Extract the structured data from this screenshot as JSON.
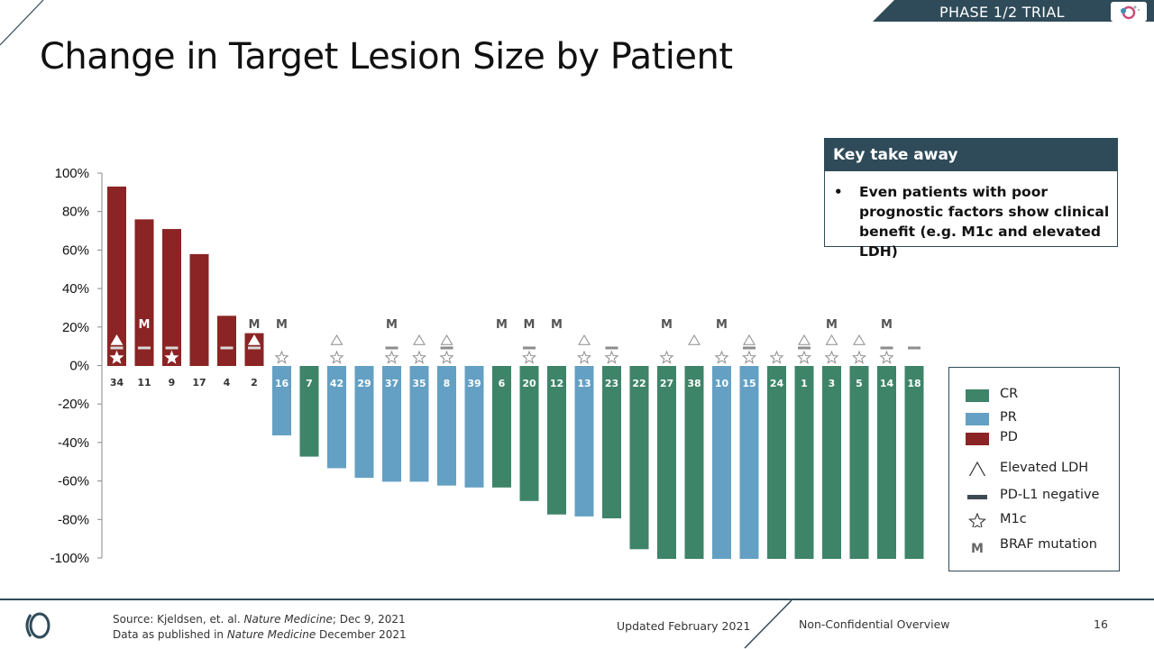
{
  "header": {
    "banner": "PHASE 1/2 TRIAL",
    "title": "Change in Target Lesion Size by Patient"
  },
  "colors": {
    "CR": "#3e8469",
    "PR": "#64a0c3",
    "PD": "#8b2424",
    "navy": "#2f4b59",
    "marker": "#8c8c8c"
  },
  "chart_data": {
    "type": "bar",
    "title": "Change in Target Lesion Size by Patient",
    "ylabel": "",
    "xlabel": "",
    "ylim": [
      -100,
      100
    ],
    "yticks": [
      "100%",
      "80%",
      "60%",
      "40%",
      "20%",
      "0%",
      "-20%",
      "-40%",
      "-60%",
      "-80%",
      "-100%"
    ],
    "patients": [
      {
        "id": "34",
        "value": 93,
        "response": "PD",
        "ldh": true,
        "pdl1_neg": true,
        "m1c": true,
        "braf": false
      },
      {
        "id": "11",
        "value": 76,
        "response": "PD",
        "ldh": false,
        "pdl1_neg": true,
        "m1c": false,
        "braf": true
      },
      {
        "id": "9",
        "value": 71,
        "response": "PD",
        "ldh": false,
        "pdl1_neg": true,
        "m1c": true,
        "braf": false
      },
      {
        "id": "17",
        "value": 58,
        "response": "PD",
        "ldh": false,
        "pdl1_neg": false,
        "m1c": false,
        "braf": false
      },
      {
        "id": "4",
        "value": 26,
        "response": "PD",
        "ldh": false,
        "pdl1_neg": true,
        "m1c": false,
        "braf": false
      },
      {
        "id": "2",
        "value": 17,
        "response": "PD",
        "ldh": true,
        "pdl1_neg": true,
        "m1c": false,
        "braf": true
      },
      {
        "id": "16",
        "value": -36,
        "response": "PR",
        "ldh": false,
        "pdl1_neg": false,
        "m1c": true,
        "braf": true
      },
      {
        "id": "7",
        "value": -47,
        "response": "CR",
        "ldh": false,
        "pdl1_neg": false,
        "m1c": false,
        "braf": false
      },
      {
        "id": "42",
        "value": -53,
        "response": "PR",
        "ldh": true,
        "pdl1_neg": false,
        "m1c": true,
        "braf": false
      },
      {
        "id": "29",
        "value": -58,
        "response": "PR",
        "ldh": false,
        "pdl1_neg": false,
        "m1c": false,
        "braf": false
      },
      {
        "id": "37",
        "value": -60,
        "response": "PR",
        "ldh": false,
        "pdl1_neg": true,
        "m1c": true,
        "braf": true
      },
      {
        "id": "35",
        "value": -60,
        "response": "PR",
        "ldh": true,
        "pdl1_neg": false,
        "m1c": true,
        "braf": false
      },
      {
        "id": "8",
        "value": -62,
        "response": "PR",
        "ldh": true,
        "pdl1_neg": true,
        "m1c": true,
        "braf": false
      },
      {
        "id": "39",
        "value": -63,
        "response": "PR",
        "ldh": false,
        "pdl1_neg": false,
        "m1c": false,
        "braf": false
      },
      {
        "id": "6",
        "value": -63,
        "response": "CR",
        "ldh": false,
        "pdl1_neg": false,
        "m1c": false,
        "braf": true
      },
      {
        "id": "20",
        "value": -70,
        "response": "CR",
        "ldh": false,
        "pdl1_neg": true,
        "m1c": true,
        "braf": true
      },
      {
        "id": "12",
        "value": -77,
        "response": "CR",
        "ldh": false,
        "pdl1_neg": false,
        "m1c": false,
        "braf": true
      },
      {
        "id": "13",
        "value": -78,
        "response": "PR",
        "ldh": true,
        "pdl1_neg": false,
        "m1c": true,
        "braf": false
      },
      {
        "id": "23",
        "value": -79,
        "response": "CR",
        "ldh": false,
        "pdl1_neg": true,
        "m1c": true,
        "braf": false
      },
      {
        "id": "22",
        "value": -95,
        "response": "CR",
        "ldh": false,
        "pdl1_neg": false,
        "m1c": false,
        "braf": false
      },
      {
        "id": "27",
        "value": -100,
        "response": "CR",
        "ldh": false,
        "pdl1_neg": false,
        "m1c": true,
        "braf": true
      },
      {
        "id": "38",
        "value": -100,
        "response": "CR",
        "ldh": true,
        "pdl1_neg": false,
        "m1c": false,
        "braf": false
      },
      {
        "id": "10",
        "value": -100,
        "response": "PR",
        "ldh": false,
        "pdl1_neg": false,
        "m1c": true,
        "braf": true
      },
      {
        "id": "15",
        "value": -100,
        "response": "PR",
        "ldh": true,
        "pdl1_neg": true,
        "m1c": true,
        "braf": false
      },
      {
        "id": "24",
        "value": -100,
        "response": "CR",
        "ldh": false,
        "pdl1_neg": false,
        "m1c": true,
        "braf": false
      },
      {
        "id": "1",
        "value": -100,
        "response": "CR",
        "ldh": true,
        "pdl1_neg": true,
        "m1c": true,
        "braf": false
      },
      {
        "id": "3",
        "value": -100,
        "response": "CR",
        "ldh": true,
        "pdl1_neg": false,
        "m1c": true,
        "braf": true
      },
      {
        "id": "5",
        "value": -100,
        "response": "CR",
        "ldh": true,
        "pdl1_neg": false,
        "m1c": true,
        "braf": false
      },
      {
        "id": "14",
        "value": -100,
        "response": "CR",
        "ldh": false,
        "pdl1_neg": true,
        "m1c": true,
        "braf": true
      },
      {
        "id": "18",
        "value": -100,
        "response": "CR",
        "ldh": false,
        "pdl1_neg": true,
        "m1c": false,
        "braf": false
      }
    ],
    "legend": [
      {
        "key": "CR",
        "label": "CR",
        "symbol": "swatch"
      },
      {
        "key": "PR",
        "label": "PR",
        "symbol": "swatch"
      },
      {
        "key": "PD",
        "label": "PD",
        "symbol": "swatch"
      },
      {
        "key": "ldh",
        "label": "Elevated LDH",
        "symbol": "triangle"
      },
      {
        "key": "pdl1",
        "label": "PD-L1 negative",
        "symbol": "dash"
      },
      {
        "key": "m1c",
        "label": "M1c",
        "symbol": "star"
      },
      {
        "key": "braf",
        "label": "BRAF mutation",
        "symbol": "M"
      }
    ],
    "braf_marker_text": "M"
  },
  "takeaway": {
    "heading": "Key take away",
    "bullet": "•",
    "text": "Even patients with poor prognostic factors show clinical benefit (e.g. M1c and elevated LDH)"
  },
  "footer": {
    "source_prefix": "Source: Kjeldsen, et. al. ",
    "source_journal": "Nature Medicine",
    "source_suffix": "; Dec 9, 2021",
    "data_prefix": "Data as published in ",
    "data_journal": "Nature Medicine",
    "data_suffix": " December 2021",
    "updated": "Updated February 2021",
    "overview": "Non-Confidential Overview",
    "page": "16"
  }
}
